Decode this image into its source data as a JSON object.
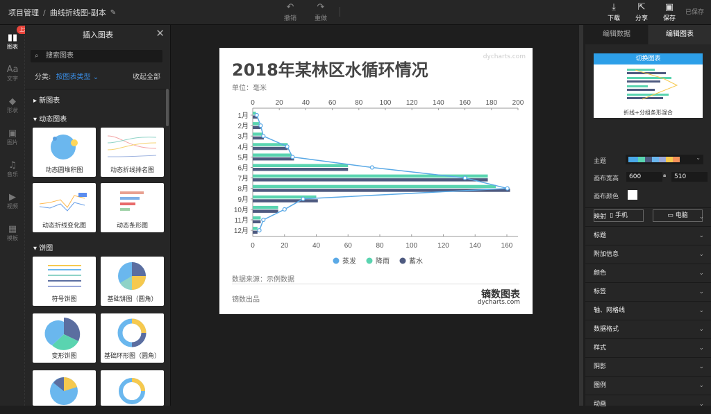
{
  "topbar": {
    "crumb_root": "项目管理",
    "crumb_sep": "/",
    "crumb_file": "曲线折线图-副本",
    "undo": "撤销",
    "redo": "重做",
    "download": "下载",
    "share": "分享",
    "save": "保存",
    "saved_status": "已保存"
  },
  "left_nav": {
    "badge": "上新",
    "items": [
      {
        "label": "图表",
        "icon": "chart-icon"
      },
      {
        "label": "文字",
        "icon": "text-icon"
      },
      {
        "label": "形状",
        "icon": "shape-icon"
      },
      {
        "label": "图片",
        "icon": "image-icon"
      },
      {
        "label": "音乐",
        "icon": "music-icon"
      },
      {
        "label": "视频",
        "icon": "video-icon"
      },
      {
        "label": "模板",
        "icon": "template-icon"
      }
    ]
  },
  "insert_panel": {
    "title": "插入图表",
    "search_placeholder": "搜索图表",
    "category_label": "分类:",
    "category_value": "按图表类型",
    "collapse_all": "收起全部",
    "sections": [
      "新图表",
      "动态图表",
      "饼图"
    ],
    "cards": [
      "动态圆堆积图",
      "动态折线排名图",
      "动态折线变化图",
      "动态条形图",
      "符号饼图",
      "基础饼图（圆角）",
      "变形饼图",
      "基础环形图（圆角）"
    ]
  },
  "sheet": {
    "title": "2018年某林区水循环情况",
    "unit": "单位：毫米",
    "watermark": "dycharts.com",
    "source": "数据来源：示例数据",
    "maker": "镝数出品",
    "brand": "镝数图表",
    "brand_url": "dycharts.com"
  },
  "chart_data": {
    "type": "bar",
    "orientation": "horizontal",
    "categories": [
      "1月",
      "2月",
      "3月",
      "4月",
      "5月",
      "6月",
      "7月",
      "8月",
      "9月",
      "10月",
      "11月",
      "12月"
    ],
    "series": [
      {
        "name": "蒸发",
        "type": "line",
        "axis": "top",
        "color": "#5aa9e6",
        "values": [
          3,
          6,
          8,
          26,
          30,
          90,
          160,
          192,
          38,
          24,
          8,
          5
        ]
      },
      {
        "name": "降雨",
        "type": "bar",
        "axis": "bottom",
        "color": "#5ad4b0",
        "values": [
          2,
          4,
          6,
          22,
          24,
          60,
          148,
          153,
          40,
          16,
          5,
          3
        ]
      },
      {
        "name": "蓄水",
        "type": "bar",
        "axis": "bottom",
        "color": "#4e5a80",
        "values": [
          3,
          5,
          7,
          22,
          26,
          60,
          148,
          162,
          41,
          16,
          5,
          3
        ]
      }
    ],
    "top_axis": {
      "ticks": [
        0,
        20,
        40,
        60,
        80,
        100,
        120,
        140,
        160,
        180,
        200
      ],
      "range": [
        0,
        200
      ]
    },
    "bottom_axis": {
      "ticks": [
        0,
        20,
        40,
        60,
        80,
        100,
        120,
        140,
        160
      ],
      "range": [
        0,
        170
      ]
    },
    "legend": "bottom"
  },
  "right_panel": {
    "tabs": [
      "编辑数据",
      "编辑图表"
    ],
    "switch_chart": "切换图表",
    "chart_type_name": "折线+分组条形混合",
    "theme_label": "主题",
    "width_label": "画布宽高",
    "width": "600",
    "height": "510",
    "bg_label": "画布颜色",
    "mobile": "手机",
    "desktop": "电脑",
    "sections": [
      "映射",
      "标题",
      "附加信息",
      "颜色",
      "标签",
      "轴、网格线",
      "数据格式",
      "样式",
      "阴影",
      "图例",
      "动画"
    ]
  }
}
